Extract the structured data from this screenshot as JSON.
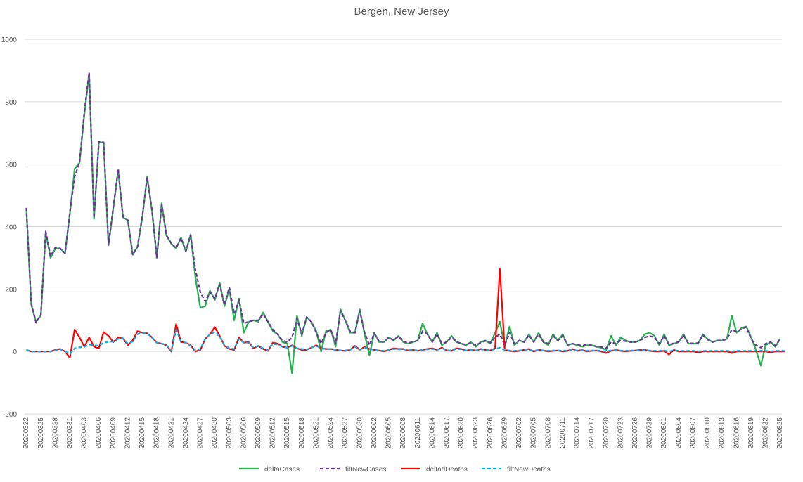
{
  "chart_data": {
    "type": "line",
    "title": "Bergen, New Jersey",
    "ylim": [
      -200,
      1000
    ],
    "yticks": [
      -200,
      0,
      200,
      400,
      600,
      800,
      1000
    ],
    "grid": true,
    "legend_position": "bottom",
    "x_labels": [
      "20200322",
      "20200325",
      "20200328",
      "20200331",
      "20200403",
      "20200406",
      "20200409",
      "20200412",
      "20200415",
      "20200418",
      "20200421",
      "20200424",
      "20200427",
      "20200430",
      "20200503",
      "20200506",
      "20200509",
      "20200512",
      "20200515",
      "20200518",
      "20200521",
      "20200524",
      "20200527",
      "20200530",
      "20200602",
      "20200605",
      "20200608",
      "20200611",
      "20200614",
      "20200617",
      "20200620",
      "20200623",
      "20200626",
      "20200629",
      "20200702",
      "20200705",
      "20200708",
      "20200711",
      "20200714",
      "20200717",
      "20200720",
      "20200723",
      "20200726",
      "20200729",
      "20200801",
      "20200804",
      "20200807",
      "20200810",
      "20200813",
      "20200816",
      "20200819",
      "20200822",
      "20200825"
    ],
    "series": [
      {
        "name": "deltaCases",
        "color": "#22b14c",
        "dashed": false,
        "values": [
          455,
          150,
          95,
          115,
          380,
          300,
          330,
          330,
          315,
          440,
          585,
          605,
          760,
          890,
          425,
          670,
          670,
          340,
          460,
          580,
          430,
          420,
          310,
          335,
          430,
          560,
          450,
          300,
          475,
          370,
          345,
          330,
          365,
          320,
          375,
          235,
          140,
          145,
          195,
          165,
          220,
          145,
          200,
          100,
          170,
          60,
          95,
          100,
          95,
          125,
          95,
          65,
          55,
          30,
          25,
          -70,
          115,
          50,
          110,
          95,
          65,
          0,
          65,
          70,
          15,
          135,
          100,
          60,
          60,
          135,
          55,
          -12,
          60,
          30,
          30,
          45,
          35,
          50,
          30,
          25,
          30,
          35,
          90,
          55,
          30,
          60,
          20,
          30,
          50,
          30,
          25,
          20,
          30,
          15,
          30,
          35,
          25,
          60,
          95,
          15,
          80,
          20,
          35,
          30,
          55,
          30,
          60,
          30,
          20,
          55,
          35,
          55,
          20,
          25,
          20,
          15,
          20,
          20,
          15,
          12,
          5,
          50,
          20,
          45,
          35,
          30,
          30,
          35,
          55,
          60,
          50,
          20,
          55,
          20,
          25,
          30,
          55,
          25,
          25,
          25,
          55,
          40,
          30,
          35,
          35,
          40,
          115,
          60,
          75,
          80,
          45,
          5,
          -45,
          20,
          30,
          15,
          40
        ]
      },
      {
        "name": "filtNewCases",
        "color": "#7030a0",
        "dashed": true,
        "values": [
          460,
          155,
          92,
          118,
          385,
          305,
          333,
          330,
          314,
          445,
          560,
          605,
          770,
          893,
          428,
          672,
          670,
          342,
          463,
          583,
          433,
          421,
          311,
          336,
          433,
          558,
          452,
          302,
          470,
          372,
          346,
          331,
          363,
          321,
          372,
          260,
          190,
          160,
          190,
          170,
          215,
          150,
          205,
          120,
          165,
          90,
          95,
          100,
          100,
          120,
          95,
          70,
          55,
          35,
          30,
          45,
          105,
          55,
          110,
          95,
          60,
          25,
          60,
          70,
          25,
          130,
          100,
          65,
          60,
          130,
          60,
          20,
          58,
          32,
          32,
          44,
          36,
          48,
          32,
          27,
          30,
          35,
          65,
          55,
          30,
          55,
          25,
          30,
          45,
          32,
          25,
          22,
          28,
          20,
          28,
          34,
          28,
          45,
          55,
          20,
          60,
          25,
          35,
          30,
          52,
          30,
          55,
          30,
          25,
          50,
          35,
          50,
          22,
          25,
          22,
          18,
          22,
          20,
          16,
          14,
          10,
          30,
          25,
          35,
          33,
          30,
          30,
          35,
          45,
          50,
          45,
          25,
          50,
          22,
          26,
          30,
          52,
          26,
          26,
          27,
          52,
          38,
          30,
          35,
          35,
          40,
          70,
          62,
          72,
          78,
          40,
          20,
          12,
          25,
          30,
          18,
          40
        ]
      },
      {
        "name": "deltadDeaths",
        "color": "#ff0000",
        "dashed": false,
        "values": [
          5,
          0,
          0,
          0,
          0,
          0,
          5,
          8,
          0,
          -20,
          70,
          45,
          15,
          45,
          15,
          10,
          62,
          50,
          30,
          45,
          42,
          20,
          35,
          65,
          60,
          58,
          45,
          28,
          25,
          20,
          0,
          88,
          30,
          28,
          20,
          0,
          5,
          40,
          55,
          78,
          50,
          18,
          8,
          5,
          45,
          28,
          30,
          10,
          18,
          8,
          2,
          28,
          25,
          15,
          12,
          20,
          10,
          5,
          5,
          12,
          20,
          10,
          8,
          8,
          5,
          3,
          2,
          5,
          18,
          5,
          15,
          8,
          5,
          3,
          0,
          5,
          10,
          8,
          8,
          3,
          5,
          2,
          5,
          8,
          10,
          5,
          12,
          3,
          2,
          10,
          8,
          3,
          5,
          3,
          8,
          5,
          3,
          10,
          265,
          5,
          2,
          0,
          2,
          5,
          8,
          0,
          5,
          3,
          0,
          2,
          3,
          0,
          2,
          8,
          2,
          5,
          0,
          2,
          3,
          0,
          -5,
          2,
          5,
          2,
          0,
          2,
          3,
          5,
          5,
          2,
          0,
          0,
          2,
          -10,
          5,
          0,
          0,
          0,
          0,
          -3,
          0,
          0,
          0,
          0,
          0,
          0,
          -5,
          0,
          0,
          0,
          0,
          0,
          0,
          0,
          -3,
          0,
          0,
          0
        ]
      },
      {
        "name": "filtNewDeaths",
        "color": "#00b0f0",
        "dashed": true,
        "values": [
          5,
          0,
          0,
          0,
          0,
          0,
          4,
          7,
          0,
          -8,
          10,
          13,
          15,
          22,
          20,
          18,
          28,
          30,
          32,
          40,
          42,
          25,
          32,
          55,
          60,
          58,
          45,
          28,
          25,
          20,
          2,
          70,
          32,
          28,
          18,
          3,
          8,
          40,
          55,
          62,
          48,
          20,
          10,
          8,
          40,
          28,
          28,
          12,
          18,
          10,
          5,
          25,
          22,
          15,
          12,
          18,
          10,
          8,
          6,
          12,
          18,
          10,
          8,
          8,
          5,
          3,
          3,
          5,
          15,
          6,
          12,
          8,
          5,
          3,
          2,
          5,
          8,
          7,
          7,
          4,
          5,
          3,
          5,
          7,
          8,
          5,
          10,
          4,
          3,
          8,
          7,
          3,
          5,
          3,
          7,
          5,
          3,
          8,
          12,
          5,
          3,
          2,
          3,
          5,
          6,
          2,
          5,
          3,
          2,
          3,
          3,
          2,
          3,
          6,
          3,
          4,
          2,
          3,
          3,
          2,
          0,
          3,
          4,
          3,
          2,
          3,
          3,
          4,
          4,
          3,
          2,
          2,
          3,
          0,
          4,
          2,
          2,
          2,
          2,
          0,
          2,
          2,
          2,
          2,
          2,
          2,
          0,
          2,
          2,
          2,
          2,
          2,
          2,
          2,
          0,
          2,
          2,
          2
        ]
      }
    ]
  }
}
